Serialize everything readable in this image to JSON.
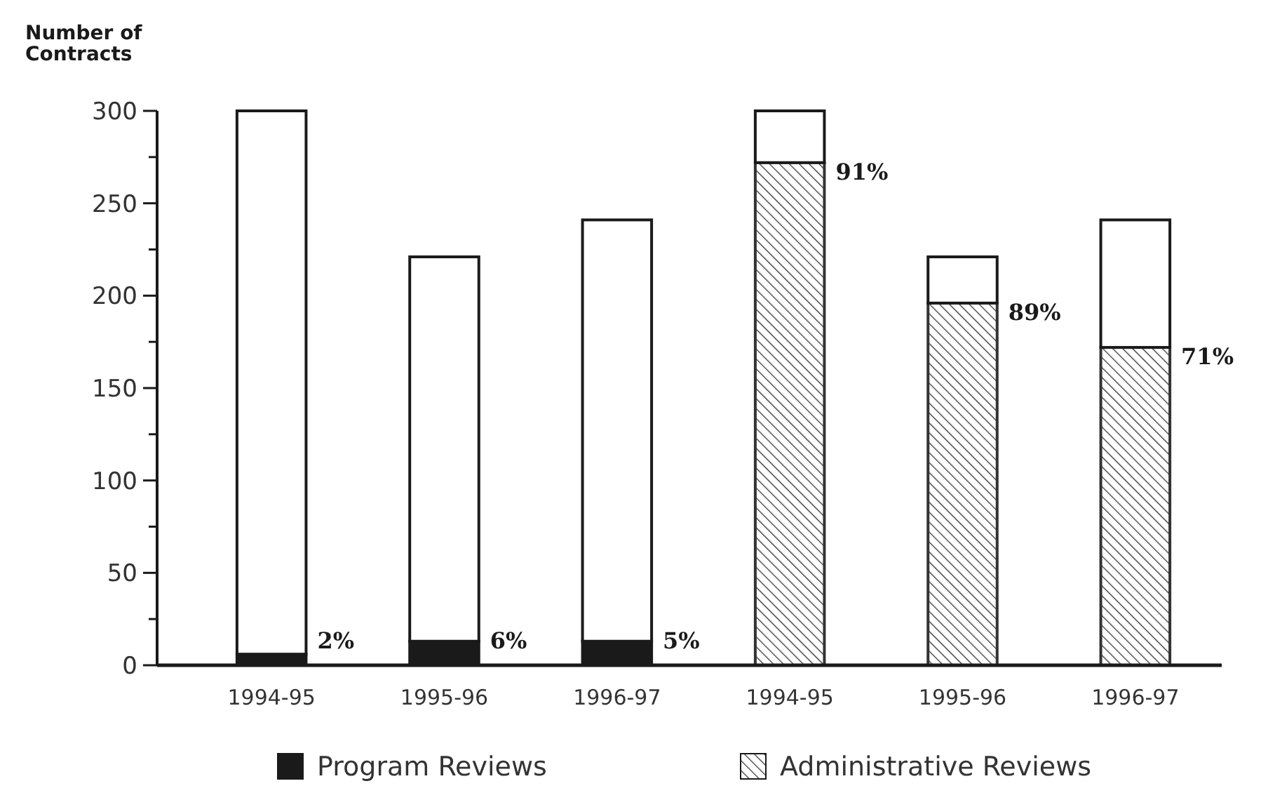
{
  "chart_data": {
    "type": "bar",
    "ylabel": "Number of\nContracts",
    "categories": [
      "1994-95",
      "1995-96",
      "1996-97",
      "1994-95",
      "1995-96",
      "1996-97"
    ],
    "stacked": true,
    "legend": "bottom",
    "grid": false,
    "ylim": [
      0,
      300
    ],
    "yticks": [
      0,
      {
        "value": 25,
        "label": null
      },
      50,
      {
        "value": 75,
        "label": null
      },
      100,
      {
        "value": 125,
        "label": null
      },
      150,
      {
        "value": 175,
        "label": null
      },
      200,
      {
        "value": 225,
        "label": null
      },
      250,
      {
        "value": 275,
        "label": null
      },
      300
    ],
    "annotations": [
      "2%",
      "6%",
      "5%",
      "91%",
      "89%",
      "71%"
    ],
    "series": [
      {
        "name": "Program Reviews",
        "color": "#1a1a1a",
        "values": [
          6,
          13,
          13,
          null,
          null,
          null
        ]
      },
      {
        "name": "Administrative Reviews",
        "color": "#333333",
        "values": [
          null,
          null,
          null,
          272,
          196,
          172
        ]
      },
      {
        "color": "#ffffff",
        "values": [
          294,
          208,
          228,
          28,
          25,
          69
        ]
      }
    ]
  }
}
